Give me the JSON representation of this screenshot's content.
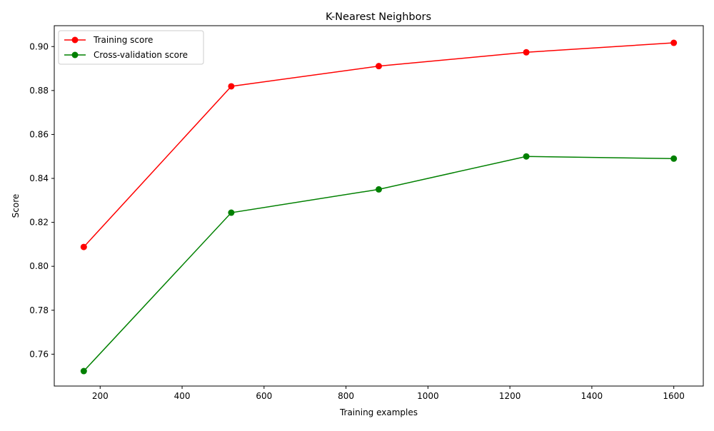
{
  "chart_data": {
    "type": "line",
    "title": "K-Nearest Neighbors",
    "xlabel": "Training examples",
    "ylabel": "Score",
    "x": [
      160,
      520,
      880,
      1240,
      1600
    ],
    "xlim": [
      88,
      1672
    ],
    "ylim": [
      0.7455,
      0.9095
    ],
    "xticks": [
      200,
      400,
      600,
      800,
      1000,
      1200,
      1400,
      1600
    ],
    "xtick_labels": [
      "200",
      "400",
      "600",
      "800",
      "1000",
      "1200",
      "1400",
      "1600"
    ],
    "yticks": [
      0.76,
      0.78,
      0.8,
      0.82,
      0.84,
      0.86,
      0.88,
      0.9
    ],
    "ytick_labels": [
      "0.76",
      "0.78",
      "0.80",
      "0.82",
      "0.84",
      "0.86",
      "0.88",
      "0.90"
    ],
    "grid": false,
    "legend_position": "top-left",
    "series": [
      {
        "name": "Training score",
        "color": "#ff0000",
        "marker": "circle",
        "values": [
          0.8088,
          0.8819,
          0.8911,
          0.8974,
          0.9017
        ]
      },
      {
        "name": "Cross-validation score",
        "color": "#008000",
        "marker": "circle",
        "values": [
          0.7523,
          0.8244,
          0.835,
          0.85,
          0.849
        ]
      }
    ]
  }
}
